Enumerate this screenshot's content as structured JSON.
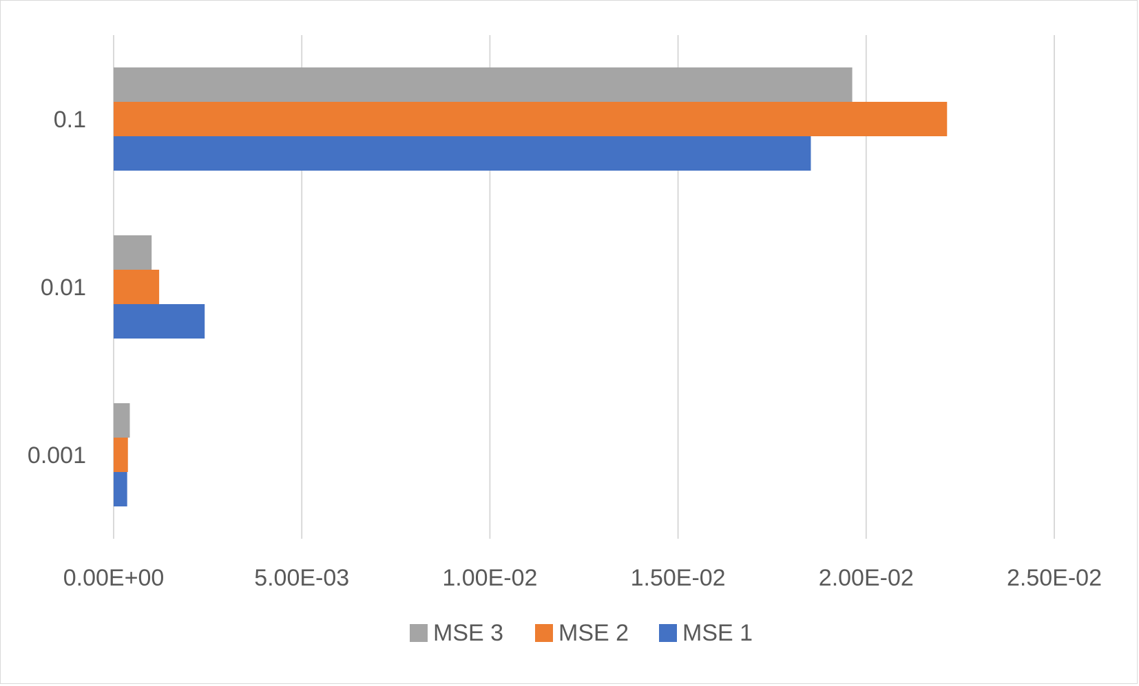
{
  "chart_data": {
    "type": "bar",
    "orientation": "horizontal",
    "categories": [
      "0.1",
      "0.01",
      "0.001"
    ],
    "series": [
      {
        "name": "MSE 1",
        "color": "#4472C4",
        "values": [
          0.01853,
          0.00242,
          0.00036
        ]
      },
      {
        "name": "MSE 2",
        "color": "#ED7D31",
        "values": [
          0.02215,
          0.00121,
          0.00038
        ]
      },
      {
        "name": "MSE 3",
        "color": "#A5A5A5",
        "values": [
          0.01963,
          0.00101,
          0.00043
        ]
      }
    ],
    "x_ticks": [
      "0.00E+00",
      "5.00E-03",
      "1.00E-02",
      "1.50E-02",
      "2.00E-02",
      "2.50E-02"
    ],
    "xlim": [
      0,
      0.025
    ],
    "grid": true,
    "legend": {
      "placement": "bottom",
      "entries": [
        "MSE 3",
        "MSE 2",
        "MSE 1"
      ]
    }
  }
}
